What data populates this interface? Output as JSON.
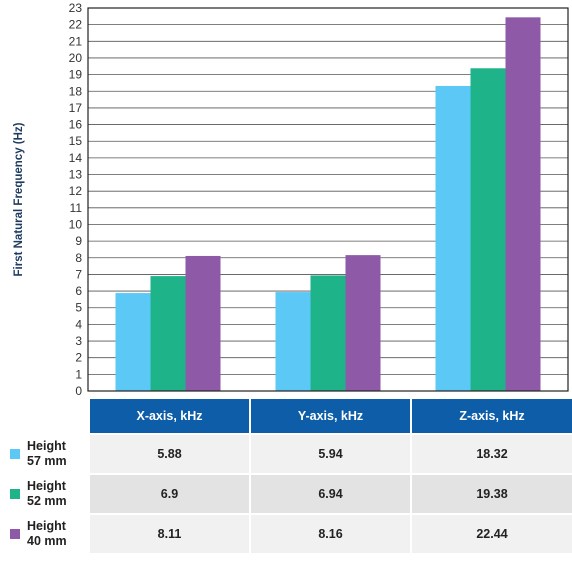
{
  "chart_data": {
    "type": "bar",
    "ylabel": "First Natural Frequency (Hz)",
    "xlabel": "",
    "title": "",
    "ylim": [
      0,
      23
    ],
    "yticks": [
      0,
      1,
      2,
      3,
      4,
      5,
      6,
      7,
      8,
      9,
      10,
      11,
      12,
      13,
      14,
      15,
      16,
      17,
      18,
      19,
      20,
      21,
      22,
      23
    ],
    "grid": true,
    "categories": [
      "X-axis, kHz",
      "Y-axis, kHz",
      "Z-axis, kHz"
    ],
    "series": [
      {
        "name": "Height 57 mm",
        "color": "#5bc8f5",
        "values": [
          5.88,
          5.94,
          18.32
        ]
      },
      {
        "name": "Height 52 mm",
        "color": "#1fb38a",
        "values": [
          6.9,
          6.94,
          19.38
        ]
      },
      {
        "name": "Height 40 mm",
        "color": "#8e5aa8",
        "values": [
          8.11,
          8.16,
          22.44
        ]
      }
    ]
  },
  "table": {
    "headers": [
      "X-axis, kHz",
      "Y-axis, kHz",
      "Z-axis, kHz"
    ],
    "rows": [
      {
        "line1": "Height",
        "line2": "57 mm",
        "color": "#5bc8f5",
        "values": [
          "5.88",
          "5.94",
          "18.32"
        ]
      },
      {
        "line1": "Height",
        "line2": "52 mm",
        "color": "#1fb38a",
        "values": [
          "6.9",
          "6.94",
          "19.38"
        ]
      },
      {
        "line1": "Height",
        "line2": "40 mm",
        "color": "#8e5aa8",
        "values": [
          "8.11",
          "8.16",
          "22.44"
        ]
      }
    ]
  }
}
